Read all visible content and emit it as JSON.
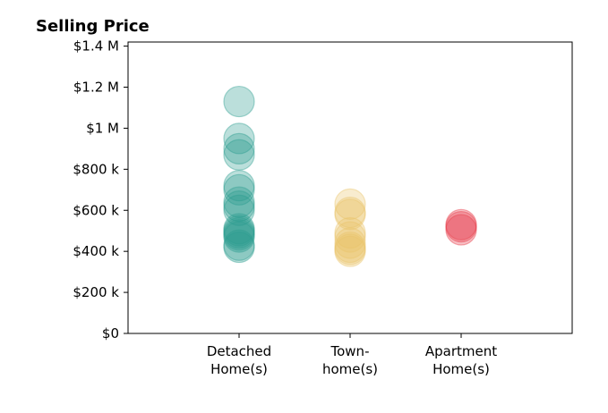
{
  "chart_data": {
    "type": "scatter",
    "title": "Selling Price",
    "xlabel": "",
    "ylabel": "",
    "ylim": [
      0,
      1420000
    ],
    "yticks": [
      {
        "value": 0,
        "label": "$0"
      },
      {
        "value": 200000,
        "label": "$200 k"
      },
      {
        "value": 400000,
        "label": "$400 k"
      },
      {
        "value": 600000,
        "label": "$600 k"
      },
      {
        "value": 800000,
        "label": "$800 k"
      },
      {
        "value": 1000000,
        "label": "$1 M"
      },
      {
        "value": 1200000,
        "label": "$1.2 M"
      },
      {
        "value": 1400000,
        "label": "$1.4 M"
      }
    ],
    "categories": [
      {
        "lines": [
          "Detached",
          "Home(s)"
        ]
      },
      {
        "lines": [
          "Town-",
          "home(s)"
        ]
      },
      {
        "lines": [
          "Apartment",
          "Home(s)"
        ]
      }
    ],
    "series": [
      {
        "category_index": 0,
        "color": "#2a9d8f",
        "values": [
          1130000,
          950000,
          900000,
          870000,
          720000,
          700000,
          640000,
          620000,
          600000,
          510000,
          500000,
          490000,
          480000,
          470000,
          430000,
          420000
        ]
      },
      {
        "category_index": 1,
        "color": "#e9c46a",
        "values": [
          630000,
          590000,
          580000,
          490000,
          470000,
          440000,
          420000,
          410000,
          400000
        ]
      },
      {
        "category_index": 2,
        "color": "#e63946",
        "values": [
          530000,
          520000,
          505000
        ]
      }
    ],
    "marker_alpha": 0.32,
    "grid": false,
    "legend": "none"
  }
}
